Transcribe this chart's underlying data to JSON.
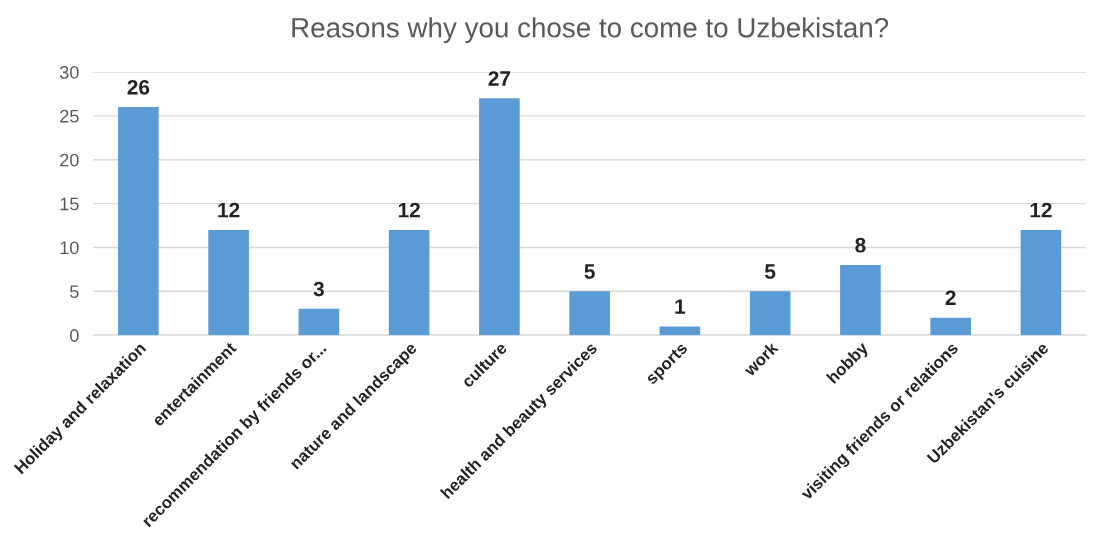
{
  "chart_data": {
    "type": "bar",
    "title": "Reasons why you chose to come to Uzbekistan?",
    "categories": [
      "Holiday and relaxation",
      "entertainment",
      "recommendation by friends or...",
      "nature and landscape",
      "culture",
      "health and beauty services",
      "sports",
      "work",
      "hobby",
      "visiting friends or relations",
      "Uzbekistan's cuisine"
    ],
    "values": [
      26,
      12,
      3,
      12,
      27,
      5,
      1,
      5,
      8,
      2,
      12
    ],
    "color": "#5b9bd5",
    "ylim": [
      0,
      30
    ],
    "yticks": [
      0,
      5,
      10,
      15,
      20,
      25,
      30
    ],
    "grid": "y",
    "data_labels": true
  }
}
